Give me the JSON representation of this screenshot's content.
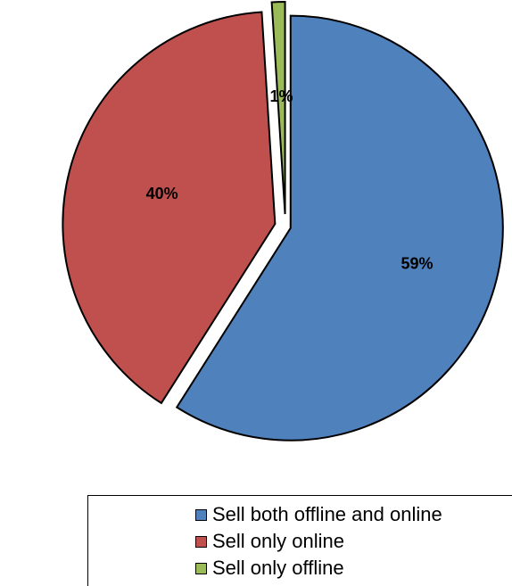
{
  "chart_data": {
    "type": "pie",
    "title": "",
    "slices": [
      {
        "label": "Sell both offline and online",
        "value": 59,
        "data_label": "59%",
        "color": "#4f81bd"
      },
      {
        "label": "Sell only online",
        "value": 40,
        "data_label": "40%",
        "color": "#c0504d"
      },
      {
        "label": "Sell only offline",
        "value": 1,
        "data_label": "1%",
        "color": "#9bbb59"
      }
    ],
    "start_angle": "12 o'clock, clockwise",
    "exploded": true,
    "legend_position": "bottom"
  },
  "legend": {
    "items": [
      {
        "label": "Sell both offline and online",
        "color": "#4f81bd"
      },
      {
        "label": "Sell only online",
        "color": "#c0504d"
      },
      {
        "label": "Sell only offline",
        "color": "#9bbb59"
      }
    ]
  }
}
